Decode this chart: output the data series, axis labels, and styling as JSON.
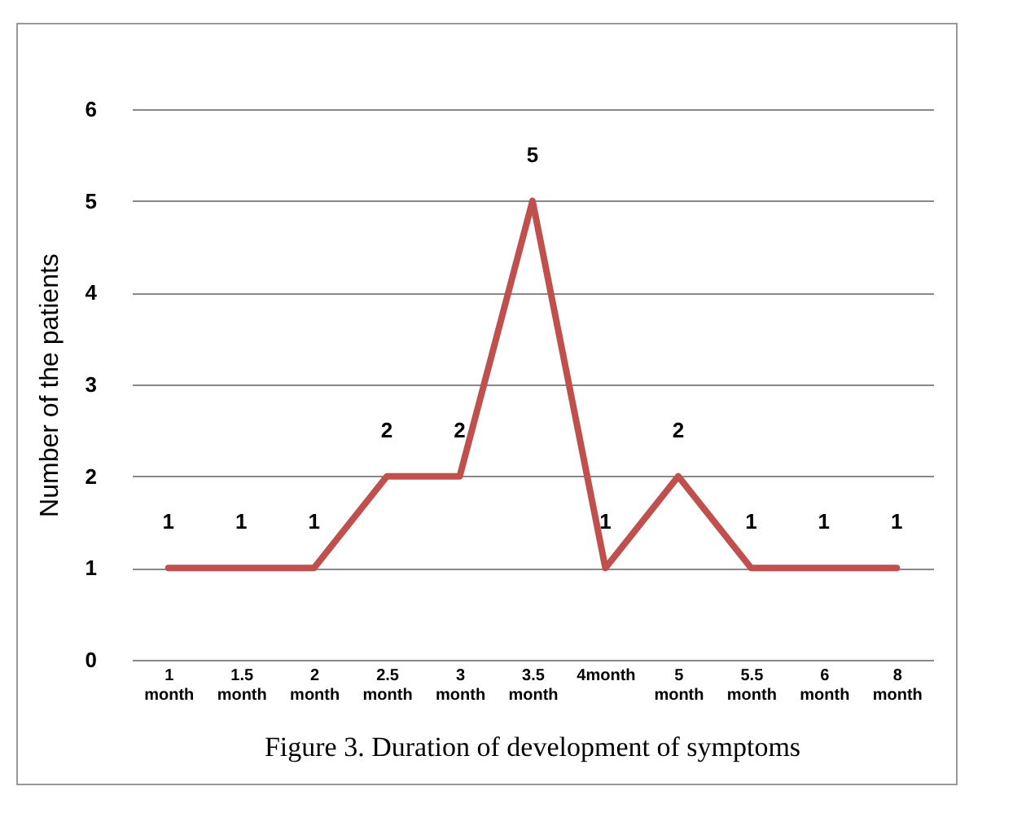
{
  "chart_data": {
    "type": "line",
    "title": "Figure 3. Duration of development of symptoms",
    "ylabel": "Number of the patients",
    "categories": [
      "1 month",
      "1.5 month",
      "2 month",
      "2.5 month",
      "3 month",
      "3.5 month",
      "4month",
      "5 month",
      "5.5 month",
      "6 month",
      "8 month"
    ],
    "series": [
      {
        "color": "#c0504d",
        "values": [
          1,
          1,
          1,
          2,
          2,
          5,
          1,
          2,
          1,
          1,
          1
        ]
      }
    ],
    "ylim": [
      0,
      6
    ],
    "yticks": [
      0,
      1,
      2,
      3,
      4,
      5,
      6
    ],
    "grid": "y",
    "data_labels": true,
    "marker": "none",
    "line_style": "solid"
  }
}
